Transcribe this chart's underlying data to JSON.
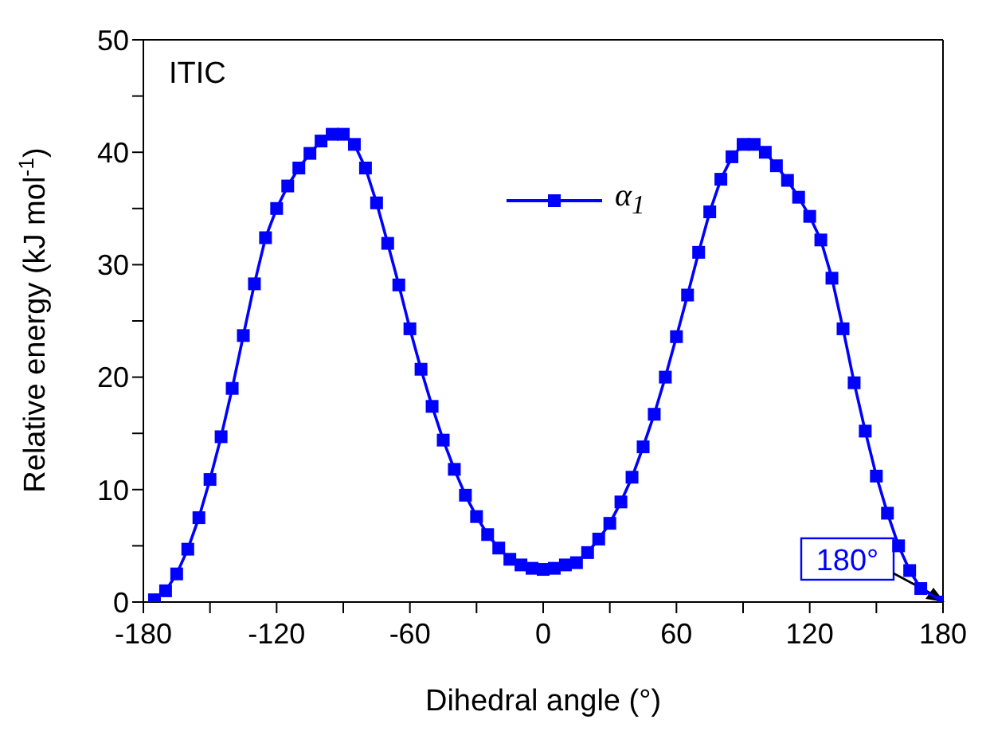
{
  "chart_data": {
    "type": "line",
    "xlabel": "Dihedral angle (°)",
    "ylabel": "Relative energy (kJ mol$^{-1}$)",
    "annotations": [
      "ITIC",
      {
        "text": "180°",
        "x": 180,
        "y": 0
      }
    ],
    "xlim": [
      -180,
      180
    ],
    "xticks": [
      -180,
      {
        "value": -150,
        "label": null
      },
      -120,
      {
        "value": -90,
        "label": null
      },
      -60,
      {
        "value": -30,
        "label": null
      },
      0,
      {
        "value": 30,
        "label": null
      },
      60,
      {
        "value": 90,
        "label": null
      },
      120,
      {
        "value": 150,
        "label": null
      },
      180
    ],
    "ylim": [
      0,
      50
    ],
    "yticks": [
      0,
      {
        "value": 5,
        "label": null
      },
      10,
      {
        "value": 15,
        "label": null
      },
      20,
      {
        "value": 25,
        "label": null
      },
      30,
      {
        "value": 35,
        "label": null
      },
      40,
      {
        "value": 45,
        "label": null
      },
      50
    ],
    "legend": "top",
    "marker": "square",
    "line_style": "solid",
    "grid": false,
    "series": [
      {
        "name": "α$_{1}$",
        "color": "#0000ff",
        "x": [
          -175,
          -170,
          -165,
          -160,
          -155,
          -150,
          -145,
          -140,
          -135,
          -130,
          -125,
          -120,
          -115,
          -110,
          -105,
          -100,
          -95,
          -90,
          -85,
          -80,
          -75,
          -70,
          -65,
          -60,
          -55,
          -50,
          -45,
          -40,
          -35,
          -30,
          -25,
          -20,
          -15,
          -10,
          -5,
          0,
          5,
          10,
          15,
          20,
          25,
          30,
          35,
          40,
          45,
          50,
          55,
          60,
          65,
          70,
          75,
          80,
          85,
          90,
          95,
          100,
          105,
          110,
          115,
          120,
          125,
          130,
          135,
          140,
          145,
          150,
          155,
          160,
          165,
          170,
          180
        ],
        "values": [
          0.2,
          1.0,
          2.5,
          4.7,
          7.5,
          10.9,
          14.7,
          19.0,
          23.7,
          28.3,
          32.4,
          35.0,
          37.0,
          38.6,
          39.9,
          41.0,
          41.6,
          41.6,
          40.7,
          38.6,
          35.5,
          31.9,
          28.2,
          24.3,
          20.7,
          17.4,
          14.4,
          11.8,
          9.5,
          7.6,
          6.0,
          4.8,
          3.8,
          3.3,
          3.0,
          2.9,
          3.0,
          3.3,
          3.5,
          4.4,
          5.6,
          7.0,
          8.9,
          11.1,
          13.8,
          16.7,
          20.0,
          23.6,
          27.3,
          31.1,
          34.7,
          37.6,
          39.6,
          40.7,
          40.7,
          40.0,
          38.8,
          37.5,
          36.0,
          34.3,
          32.2,
          28.8,
          24.3,
          19.5,
          15.2,
          11.2,
          7.9,
          5.0,
          2.8,
          1.2,
          0
        ]
      }
    ]
  }
}
